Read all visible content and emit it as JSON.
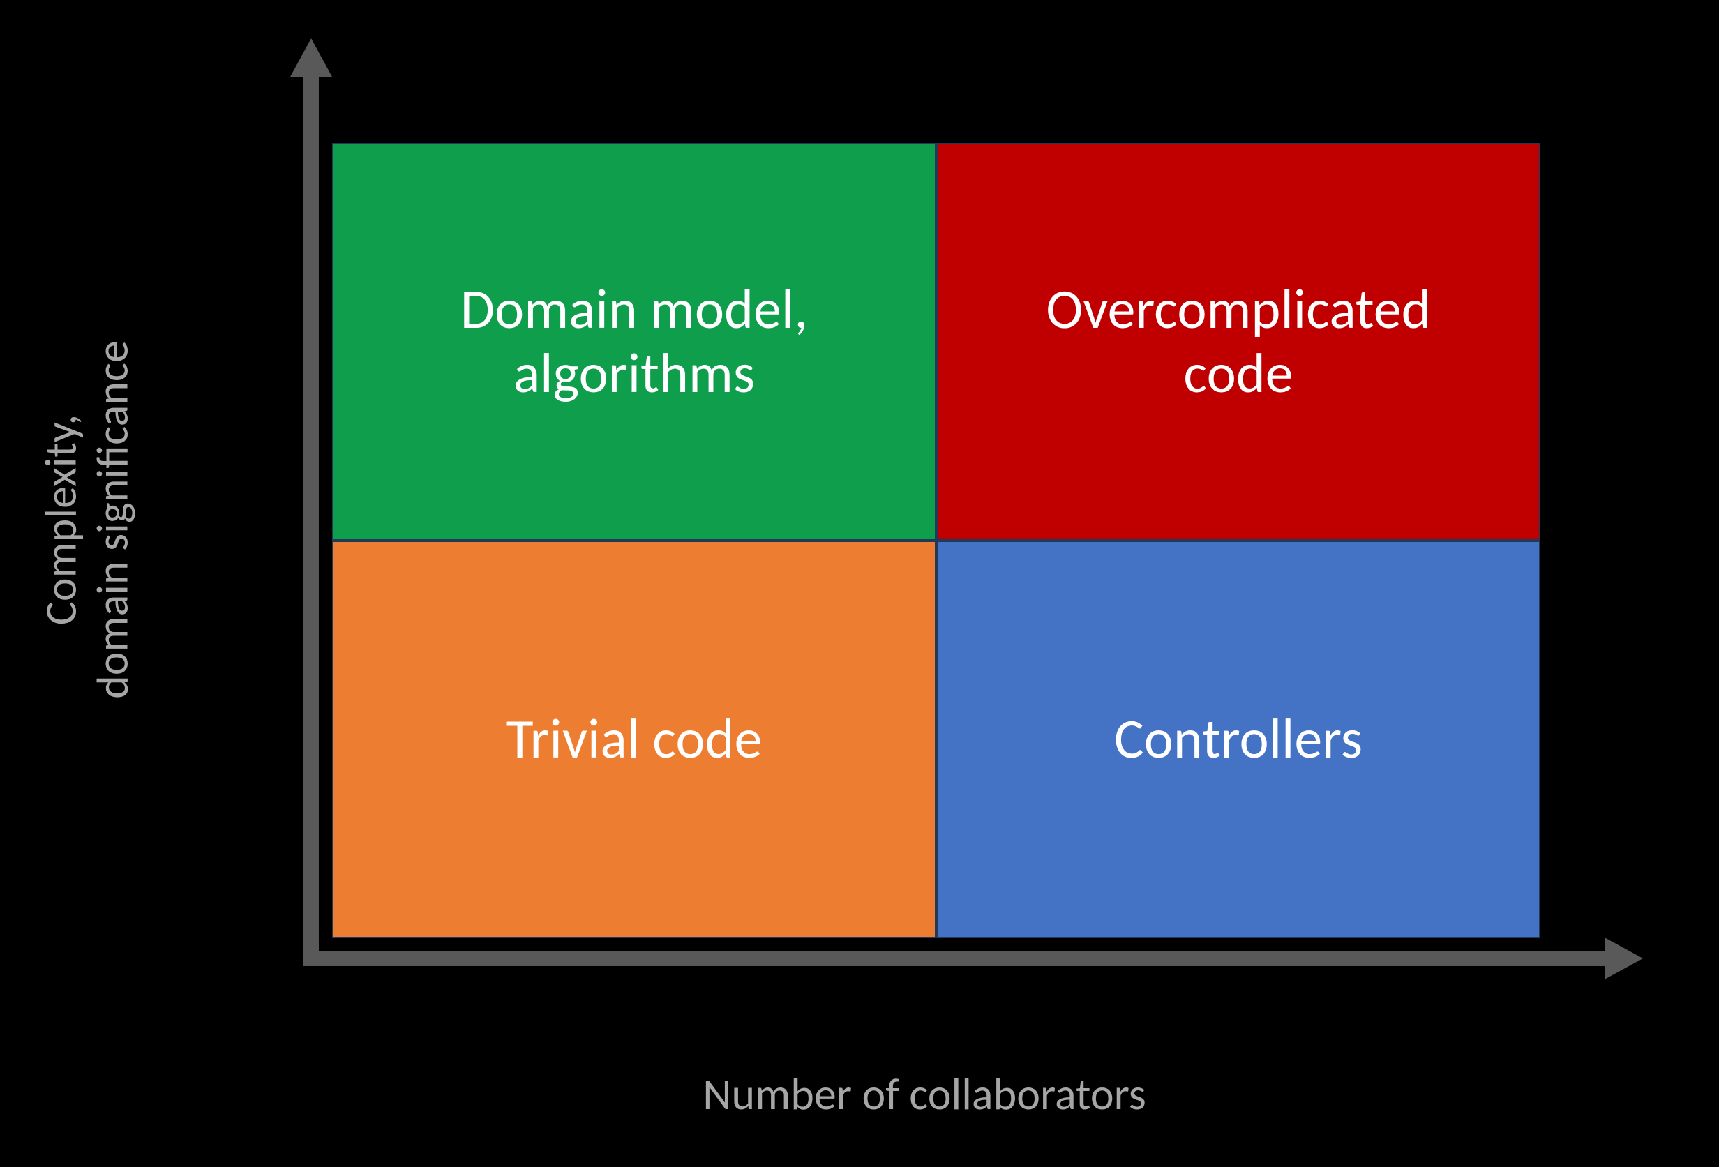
{
  "type": "quadrant-diagram",
  "background_color": "#000000",
  "axis": {
    "y_label": "Complexity,\ndomain significance",
    "x_label": "Number of collaborators",
    "line_color": "#595959",
    "label_color": "#a6a6a6",
    "label_fontsize": 64,
    "line_thickness": 22,
    "arrow_size": 55
  },
  "grid": {
    "rows": 2,
    "cols": 2,
    "border_color": "#1f3a5a",
    "cell_fontsize": 80,
    "text_color": "#ffffff"
  },
  "quadrants": {
    "top_left": {
      "label": "Domain model,\nalgorithms",
      "color": "#0e9e4c"
    },
    "top_right": {
      "label": "Overcomplicated\ncode",
      "color": "#c00000"
    },
    "bottom_left": {
      "label": "Trivial code",
      "color": "#ed7d31"
    },
    "bottom_right": {
      "label": "Controllers",
      "color": "#4472c4"
    }
  }
}
